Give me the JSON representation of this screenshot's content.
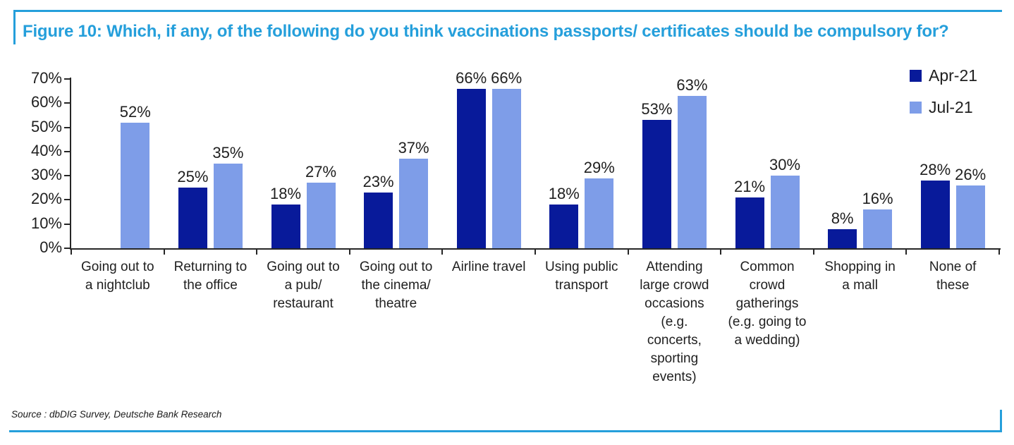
{
  "figure": {
    "title": "Figure 10: Which, if any, of the following do you think vaccinations passports/ certificates should be compulsory for?",
    "source": "Source : dbDIG Survey, Deutsche Bank Research",
    "accent_color": "#259FDB"
  },
  "chart_data": {
    "type": "bar",
    "title": "Which, if any, of the following do you think vaccinations passports/ certificates should be compulsory for?",
    "categories": [
      "Going out to a nightclub",
      "Returning to the office",
      "Going out to a pub/ restaurant",
      "Going out to the cinema/ theatre",
      "Airline travel",
      "Using public transport",
      "Attending large crowd occasions (e.g. concerts, sporting events)",
      "Common crowd gatherings (e.g. going to a wedding)",
      "Shopping in a mall",
      "None of these"
    ],
    "category_label_lines": [
      [
        "Going out to",
        "a nightclub"
      ],
      [
        "Returning to",
        "the office"
      ],
      [
        "Going out to",
        "a pub/",
        "restaurant"
      ],
      [
        "Going out to",
        "the cinema/",
        "theatre"
      ],
      [
        "Airline travel"
      ],
      [
        "Using public",
        "transport"
      ],
      [
        "Attending",
        "large crowd",
        "occasions",
        "(e.g.",
        "concerts,",
        "sporting",
        "events)"
      ],
      [
        "Common",
        "crowd",
        "gatherings",
        "(e.g. going to",
        "a wedding)"
      ],
      [
        "Shopping in",
        "a mall"
      ],
      [
        "None of",
        "these"
      ]
    ],
    "series": [
      {
        "name": "Apr-21",
        "color": "#081A9A",
        "values": [
          null,
          25,
          18,
          23,
          66,
          18,
          53,
          21,
          8,
          28
        ]
      },
      {
        "name": "Jul-21",
        "color": "#7E9DE8",
        "values": [
          52,
          35,
          27,
          37,
          66,
          29,
          63,
          30,
          16,
          26
        ]
      }
    ],
    "value_label_format": "{v}%",
    "xlabel": "",
    "ylabel": "",
    "ylim": [
      0,
      70
    ],
    "y_ticks": [
      "0%",
      "10%",
      "20%",
      "30%",
      "40%",
      "50%",
      "60%",
      "70%"
    ],
    "grid": false,
    "value_labels": true,
    "legend_position": "top-right"
  }
}
